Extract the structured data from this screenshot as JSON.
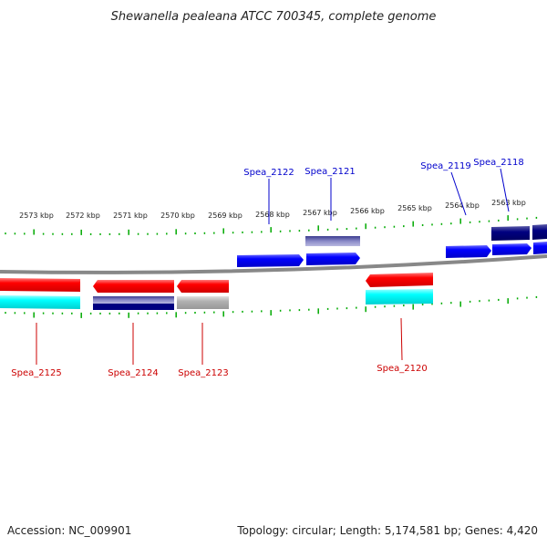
{
  "title": "Shewanella pealeana ATCC 700345, complete genome",
  "footer": {
    "accession": "Accession: NC_009901",
    "info": "Topology: circular; Length: 5,174,581 bp; Genes: 4,420"
  },
  "colors": {
    "forward_cds": "#0000ff",
    "forward_dark": "#000080",
    "reverse_cds": "#ff0000",
    "reverse_cyan": "#00ffff",
    "reverse_navy": "#000080",
    "grey_feature": "#aaaaaa",
    "ticks": "#00aa00",
    "backbone": "#888888"
  },
  "scale_labels": [
    "2573 kbp",
    "2572 kbp",
    "2571 kbp",
    "2570 kbp",
    "2569 kbp",
    "2568 kbp",
    "2567 kbp",
    "2566 kbp",
    "2565 kbp",
    "2564 kbp",
    "2563 kbp"
  ],
  "genes_forward": [
    {
      "label": "Spea_2122"
    },
    {
      "label": "Spea_2121"
    },
    {
      "label": "Spea_2119"
    },
    {
      "label": "Spea_2118"
    }
  ],
  "genes_reverse": [
    {
      "label": "Spea_2125"
    },
    {
      "label": "Spea_2124"
    },
    {
      "label": "Spea_2123"
    },
    {
      "label": "Spea_2120"
    }
  ]
}
